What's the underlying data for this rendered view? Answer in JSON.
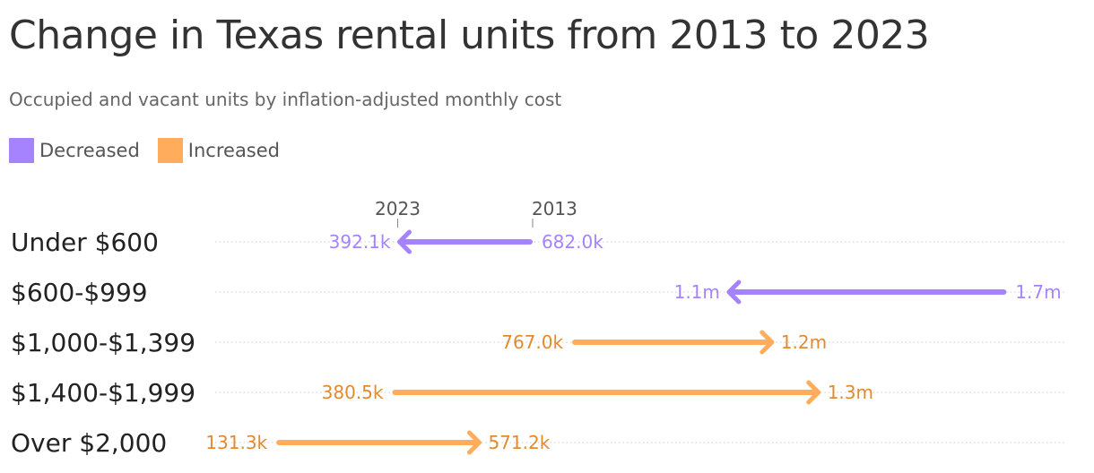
{
  "title": "Change in Texas rental units from 2013 to 2023",
  "subtitle": "Occupied and vacant units by inflation-adjusted monthly cost",
  "legend": {
    "decreased": {
      "label": "Decreased",
      "color": "#a583ff"
    },
    "increased": {
      "label": "Increased",
      "color": "#ffad5c"
    }
  },
  "chart_data": {
    "type": "dot-arrow",
    "x_unit": "rental units",
    "year_labels": {
      "start": "2013",
      "end": "2023"
    },
    "categories": [
      "Under $600",
      "$600-$999",
      "$1,000-$1,399",
      "$1,400-$1,999",
      "Over $2,000"
    ],
    "values_2013": [
      682000,
      1700000,
      767000,
      380500,
      131300
    ],
    "values_2023": [
      392100,
      1100000,
      1200000,
      1300000,
      571200
    ],
    "labels_2013": [
      "682.0k",
      "1.7m",
      "767.0k",
      "380.5k",
      "131.3k"
    ],
    "labels_2023": [
      "392.1k",
      "1.1m",
      "1.2m",
      "1.3m",
      "571.2k"
    ],
    "direction": [
      "Decreased",
      "Decreased",
      "Increased",
      "Increased",
      "Increased"
    ],
    "colors": {
      "Decreased": "#a583ff",
      "Increased": "#ffad5c",
      "Decreased_label": "#a583ff",
      "Increased_label": "#e38a2e"
    },
    "grid": true,
    "legend_position": "top-left"
  }
}
